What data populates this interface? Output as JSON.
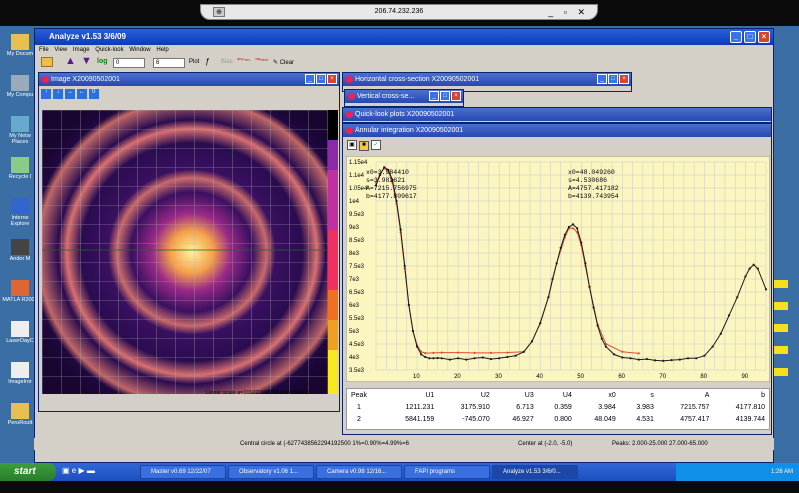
{
  "remote": {
    "host": "206.74.232.236",
    "controls": "_ ▫ ✕"
  },
  "desktop_icons": [
    {
      "label": "My Docum",
      "icon": "folder-icon"
    },
    {
      "label": "My Compu",
      "icon": "computer-icon"
    },
    {
      "label": "My Netw Places",
      "icon": "network-icon"
    },
    {
      "label": "Recycle I",
      "icon": "recycle-bin-icon"
    },
    {
      "label": "Interne Explore",
      "icon": "ie-icon"
    },
    {
      "label": "Andor M",
      "icon": "app-icon"
    },
    {
      "label": "MATLA R2007",
      "icon": "matlab-icon"
    },
    {
      "label": "LaserDayC",
      "icon": "doc-icon"
    },
    {
      "label": "ImageIror",
      "icon": "doc-icon"
    },
    {
      "label": "PeruRoutt",
      "icon": "folder-icon"
    }
  ],
  "app": {
    "title": "Analyze v1.53  3/6/09",
    "menu": [
      "File",
      "View",
      "Image",
      "Quick-look",
      "Window",
      "Help"
    ],
    "toolbar": {
      "log_label": "log",
      "from_value": "0",
      "to_value": "6",
      "plot_label": "Plot",
      "prev_label": "Prev",
      "next_label": "Next",
      "clear_label": "Clear"
    }
  },
  "image_window": {
    "title": "Image  X20090502001",
    "scale_text": "Linear scale  a=10922.000000  b=0.000000"
  },
  "hcross": {
    "title": "Horizontal cross-section  X20090502001"
  },
  "vcross": {
    "title": "Vertical cross-se..."
  },
  "quicklook": {
    "title": "Quick-look plots  X20090502001"
  },
  "annular": {
    "title": "Annular integration  X20090502001"
  },
  "fit_left": {
    "x0": "x0=3.984410",
    "s": "s=3.982621",
    "A": "A=7215.756975",
    "b": "b=4177.809617"
  },
  "fit_right": {
    "x0": "x0=48.049260",
    "s": "s=4.530686",
    "A": "A=4757.417182",
    "b": "b=4139.743954"
  },
  "peak_table": {
    "headers": [
      "Peak",
      "U1",
      "U2",
      "U3",
      "U4",
      "x0",
      "s",
      "A",
      "b"
    ],
    "rows": [
      [
        "1",
        "1211.231",
        "3175.910",
        "6.713",
        "0.359",
        "3.984",
        "3.983",
        "7215.757",
        "4177.810"
      ],
      [
        "2",
        "5841.159",
        "-745.070",
        "46.927",
        "0.800",
        "48.049",
        "4.531",
        "4757.417",
        "4139.744"
      ]
    ]
  },
  "status": {
    "left": "Central circle at (-6277438562294192500 1%=0.90%=4.99%=6",
    "mid": "Center at (-2.0, -5.0)",
    "right": "Peaks: 2.000-25.000  27.000-65.000"
  },
  "taskbar": {
    "start": "start",
    "items": [
      "Master v0.69  12/22/07",
      "Observatory v1.06  1...",
      "Camera v0.98  12/16...",
      "FAPI programs",
      "Analyze v1.53  3/6/0..."
    ],
    "time": "1:26 AM"
  },
  "chart_data": {
    "type": "line",
    "xlabel": "",
    "ylabel": "",
    "xlim": [
      0,
      95
    ],
    "ylim": [
      3500,
      11500
    ],
    "x_ticks": [
      10,
      20,
      30,
      40,
      50,
      60,
      70,
      80,
      90
    ],
    "y_ticks": [
      "3.5e3",
      "4e3",
      "4.5e3",
      "5e3",
      "5.5e3",
      "6e3",
      "6.5e3",
      "7e3",
      "7.5e3",
      "8e3",
      "8.5e3",
      "9e3",
      "9.5e3",
      "1e4",
      "1.05e4",
      "1.1e4",
      "1.15e4"
    ],
    "series": [
      {
        "color": "#1a1a1a",
        "x": [
          0,
          1,
          2,
          3,
          4,
          5,
          6,
          7,
          8,
          9,
          10,
          11,
          12,
          13,
          14,
          15,
          16,
          18,
          20,
          22,
          24,
          26,
          28,
          30,
          32,
          34,
          36,
          38,
          40,
          42,
          43,
          44,
          45,
          46,
          47,
          48,
          49,
          50,
          51,
          52,
          53,
          54,
          55,
          56,
          58,
          60,
          62,
          64,
          66,
          68,
          70,
          72,
          74,
          76,
          78,
          80,
          82,
          84,
          86,
          88,
          90,
          91,
          92,
          93,
          95
        ],
        "y": [
          10600,
          11000,
          11300,
          11200,
          10800,
          10000,
          8900,
          7500,
          6000,
          5000,
          4400,
          4100,
          4000,
          3950,
          3950,
          3960,
          3950,
          3900,
          3950,
          3900,
          3950,
          3980,
          3920,
          3950,
          4000,
          4050,
          4200,
          4600,
          5300,
          6300,
          7000,
          7600,
          8200,
          8700,
          9000,
          9100,
          8950,
          8400,
          7600,
          6700,
          5900,
          5200,
          4700,
          4400,
          4100,
          3980,
          3950,
          3900,
          3920,
          3870,
          3850,
          3880,
          3900,
          3950,
          3950,
          4050,
          4400,
          4900,
          5600,
          6300,
          7100,
          7400,
          7550,
          7400,
          6600
        ]
      },
      {
        "color": "#e04a3a",
        "x": [
          0,
          1,
          2,
          3,
          4,
          5,
          6,
          7,
          8,
          9,
          10,
          11,
          12,
          14,
          16,
          20,
          24,
          28,
          32,
          36,
          38,
          40,
          42,
          44,
          46,
          47,
          48,
          49,
          50,
          51,
          52,
          54,
          56,
          60,
          64
        ],
        "y": [
          10700,
          11050,
          11250,
          11150,
          10700,
          9900,
          8800,
          7400,
          6000,
          5000,
          4450,
          4200,
          4150,
          4160,
          4170,
          4170,
          4160,
          4160,
          4170,
          4200,
          4600,
          5300,
          6300,
          7600,
          8600,
          8950,
          8950,
          8800,
          8300,
          7500,
          6700,
          5250,
          4500,
          4200,
          4140
        ]
      }
    ]
  }
}
